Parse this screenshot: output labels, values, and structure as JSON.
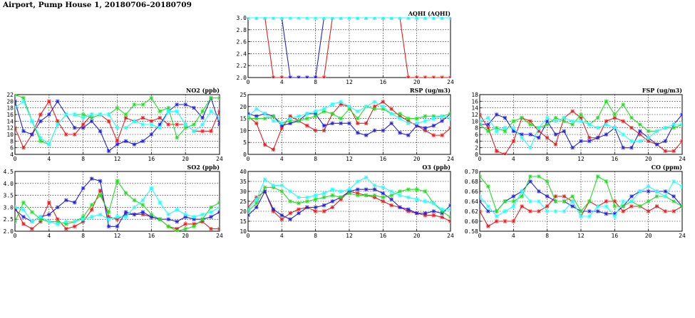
{
  "page": {
    "title": "Airport, Pump House 1, 20180706–20180709"
  },
  "series_colors": [
    "#e81c1c",
    "#2222dd",
    "#22dd22",
    "#22ffff"
  ],
  "chart_data": [
    {
      "type": "line",
      "title": "AQHI (AQHI)",
      "xlim": [
        0,
        24
      ],
      "ylim": [
        2.0,
        3.0
      ],
      "xticks": [
        0,
        4,
        8,
        12,
        16,
        20,
        24
      ],
      "yticks": [
        2.0,
        2.2,
        2.4,
        2.6,
        2.8,
        3.0
      ],
      "ytick_labels": [
        "2.0",
        "2.2",
        "2.4",
        "2.6",
        "2.8",
        "3.0"
      ],
      "grid": true,
      "x": [
        0,
        1,
        2,
        3,
        4,
        5,
        6,
        7,
        8,
        9,
        10,
        11,
        12,
        13,
        14,
        15,
        16,
        17,
        18,
        19,
        20,
        21,
        22,
        23,
        24
      ],
      "series": [
        {
          "color": "#e81c1c",
          "values": [
            3,
            3,
            3,
            2,
            2,
            2,
            2,
            2,
            2,
            2,
            3,
            3,
            3,
            3,
            3,
            3,
            3,
            3,
            3,
            2,
            2,
            2,
            2,
            2,
            2
          ]
        },
        {
          "color": "#2222dd",
          "values": [
            3,
            3,
            3,
            3,
            3,
            2,
            2,
            2,
            2,
            3,
            3,
            3,
            3,
            3,
            3,
            3,
            3,
            3,
            3,
            3,
            3,
            3,
            3,
            3,
            3
          ]
        },
        {
          "color": "#22dd22",
          "values": [
            3,
            3,
            3,
            3,
            3,
            3,
            3,
            3,
            3,
            3,
            3,
            3,
            3,
            3,
            3,
            3,
            3,
            3,
            3,
            3,
            3,
            3,
            3,
            3,
            3
          ]
        },
        {
          "color": "#22ffff",
          "values": [
            3,
            3,
            3,
            3,
            3,
            3,
            3,
            3,
            3,
            3,
            3,
            3,
            3,
            3,
            3,
            3,
            3,
            3,
            3,
            3,
            3,
            3,
            3,
            3,
            3
          ]
        }
      ]
    },
    {
      "type": "line",
      "title": "NO2 (ppb)",
      "xlim": [
        0,
        24
      ],
      "ylim": [
        4,
        22
      ],
      "xticks": [
        0,
        4,
        8,
        12,
        16,
        20,
        24
      ],
      "yticks": [
        4,
        6,
        8,
        10,
        12,
        14,
        16,
        18,
        20,
        22
      ],
      "ytick_labels": [
        "4",
        "6",
        "8",
        "10",
        "12",
        "14",
        "16",
        "18",
        "20",
        "22"
      ],
      "grid": true,
      "x": [
        0,
        1,
        2,
        3,
        4,
        5,
        6,
        7,
        8,
        9,
        10,
        11,
        12,
        13,
        14,
        15,
        16,
        17,
        18,
        19,
        20,
        21,
        22,
        23,
        24
      ],
      "series": [
        {
          "color": "#e81c1c",
          "values": [
            12,
            6,
            10,
            16,
            20,
            14,
            10,
            10,
            13,
            16,
            16,
            14,
            8,
            15,
            14,
            15,
            14,
            15,
            13,
            13,
            13,
            11,
            11,
            11,
            17
          ]
        },
        {
          "color": "#2222dd",
          "values": [
            20,
            11,
            10,
            14,
            16,
            20,
            16,
            12,
            12,
            14,
            11,
            5,
            7,
            8,
            7,
            8,
            10,
            13,
            17,
            19,
            19,
            18,
            15,
            21,
            13
          ]
        },
        {
          "color": "#22dd22",
          "values": [
            22,
            21,
            14,
            8,
            7,
            13,
            16,
            16,
            16,
            15,
            16,
            16,
            18,
            16,
            19,
            19,
            21,
            17,
            18,
            9,
            12,
            13,
            17,
            21,
            21
          ]
        },
        {
          "color": "#22ffff",
          "values": [
            18,
            20,
            14,
            9,
            7,
            13,
            16,
            16,
            15,
            16,
            16,
            16,
            12,
            12,
            14,
            13,
            13,
            12,
            17,
            17,
            13,
            11,
            13,
            17,
            15
          ]
        }
      ]
    },
    {
      "type": "line",
      "title": "RSP (ug/m3)",
      "xlim": [
        0,
        24
      ],
      "ylim": [
        0,
        25
      ],
      "xticks": [
        0,
        4,
        8,
        12,
        16,
        20,
        24
      ],
      "yticks": [
        0,
        5,
        10,
        15,
        20,
        25
      ],
      "ytick_labels": [
        "0",
        "5",
        "10",
        "15",
        "20",
        "25"
      ],
      "grid": true,
      "x": [
        0,
        1,
        2,
        3,
        4,
        5,
        6,
        7,
        8,
        9,
        10,
        11,
        12,
        13,
        14,
        15,
        16,
        17,
        18,
        19,
        20,
        21,
        22,
        23,
        24
      ],
      "series": [
        {
          "color": "#e81c1c",
          "values": [
            16,
            13,
            4,
            2,
            11,
            16,
            14,
            12,
            10,
            10,
            17,
            21,
            20,
            13,
            13,
            20,
            22,
            19,
            16,
            14,
            12,
            10,
            8,
            8,
            11
          ]
        },
        {
          "color": "#2222dd",
          "values": [
            17,
            16,
            17,
            16,
            12,
            13,
            14,
            17,
            17,
            12,
            13,
            13,
            13,
            9,
            8,
            10,
            10,
            13,
            9,
            8,
            12,
            11,
            12,
            14,
            17
          ]
        },
        {
          "color": "#22dd22",
          "values": [
            15,
            15,
            15,
            16,
            13,
            14,
            14,
            15,
            16,
            18,
            17,
            15,
            19,
            15,
            20,
            19,
            19,
            17,
            17,
            15,
            15,
            16,
            16,
            16,
            17
          ]
        },
        {
          "color": "#22ffff",
          "values": [
            16,
            19,
            17,
            14,
            13,
            15,
            16,
            17,
            18,
            19,
            21,
            22,
            20,
            18,
            20,
            22,
            20,
            17,
            15,
            13,
            13,
            14,
            15,
            16,
            15
          ]
        }
      ]
    },
    {
      "type": "line",
      "title": "FSP (ug/m3)",
      "xlim": [
        0,
        24
      ],
      "ylim": [
        0,
        18
      ],
      "xticks": [
        0,
        4,
        8,
        12,
        16,
        20,
        24
      ],
      "yticks": [
        0,
        2,
        4,
        6,
        8,
        10,
        12,
        14,
        16,
        18
      ],
      "ytick_labels": [
        "0",
        "2",
        "4",
        "6",
        "8",
        "10",
        "12",
        "14",
        "16",
        "18"
      ],
      "grid": true,
      "x": [
        0,
        1,
        2,
        3,
        4,
        5,
        6,
        7,
        8,
        9,
        10,
        11,
        12,
        13,
        14,
        15,
        16,
        17,
        18,
        19,
        20,
        21,
        22,
        23,
        24
      ],
      "series": [
        {
          "color": "#e81c1c",
          "values": [
            12,
            8,
            1,
            0,
            4,
            11,
            10,
            7,
            5,
            3,
            11,
            13,
            11,
            5,
            5,
            10,
            11,
            10,
            8,
            6,
            4,
            3,
            1,
            1,
            4
          ]
        },
        {
          "color": "#2222dd",
          "values": [
            9,
            9,
            12,
            11,
            7,
            6,
            6,
            5,
            10,
            6,
            7,
            2,
            4,
            4,
            5,
            6,
            8,
            2,
            2,
            7,
            5,
            3,
            4,
            9,
            12
          ]
        },
        {
          "color": "#22dd22",
          "values": [
            9,
            7,
            8,
            7,
            10,
            11,
            9,
            8,
            9,
            11,
            10,
            9,
            12,
            9,
            11,
            16,
            12,
            15,
            11,
            9,
            7,
            7,
            8,
            8,
            9
          ]
        },
        {
          "color": "#22ffff",
          "values": [
            10,
            11,
            7,
            8,
            8,
            5,
            2,
            8,
            11,
            10,
            11,
            10,
            10,
            9,
            8,
            9,
            8,
            6,
            4,
            4,
            5,
            7,
            8,
            9,
            9
          ]
        }
      ]
    },
    {
      "type": "line",
      "title": "SO2 (ppb)",
      "xlim": [
        0,
        24
      ],
      "ylim": [
        2.0,
        4.5
      ],
      "xticks": [
        0,
        4,
        8,
        12,
        16,
        20,
        24
      ],
      "yticks": [
        2.0,
        2.5,
        3.0,
        3.5,
        4.0,
        4.5
      ],
      "ytick_labels": [
        "2.0",
        "2.5",
        "3.0",
        "3.5",
        "4.0",
        "4.5"
      ],
      "grid": true,
      "x": [
        0,
        1,
        2,
        3,
        4,
        5,
        6,
        7,
        8,
        9,
        10,
        11,
        12,
        13,
        14,
        15,
        16,
        17,
        18,
        19,
        20,
        21,
        22,
        23,
        24
      ],
      "series": [
        {
          "color": "#e81c1c",
          "values": [
            3.0,
            2.3,
            2.1,
            2.4,
            3.2,
            2.5,
            2.1,
            2.2,
            2.4,
            2.9,
            3.7,
            2.6,
            2.5,
            2.7,
            2.7,
            2.7,
            2.6,
            2.5,
            2.2,
            2.1,
            2.3,
            2.3,
            2.4,
            2.1,
            2.1
          ]
        },
        {
          "color": "#2222dd",
          "values": [
            2.9,
            2.6,
            2.4,
            2.6,
            2.7,
            3.0,
            3.3,
            3.2,
            3.8,
            4.2,
            4.1,
            2.2,
            2.2,
            2.8,
            2.7,
            2.8,
            2.6,
            2.5,
            2.5,
            2.4,
            2.6,
            2.5,
            2.5,
            2.6,
            2.8
          ]
        },
        {
          "color": "#22dd22",
          "values": [
            2.4,
            3.2,
            2.8,
            2.5,
            2.4,
            2.4,
            2.3,
            2.4,
            2.6,
            3.1,
            3.5,
            2.8,
            4.1,
            3.6,
            3.3,
            3.1,
            2.7,
            2.5,
            2.2,
            2.0,
            2.1,
            2.2,
            2.5,
            3.0,
            3.2
          ]
        },
        {
          "color": "#22ffff",
          "values": [
            3.0,
            2.9,
            2.4,
            2.6,
            2.4,
            2.3,
            2.4,
            2.4,
            2.5,
            2.6,
            2.7,
            2.5,
            2.6,
            2.6,
            3.0,
            3.3,
            3.8,
            3.2,
            2.7,
            2.9,
            2.7,
            2.6,
            2.7,
            2.8,
            3.0
          ]
        }
      ]
    },
    {
      "type": "line",
      "title": "O3 (ppb)",
      "xlim": [
        0,
        24
      ],
      "ylim": [
        10,
        40
      ],
      "xticks": [
        0,
        4,
        8,
        12,
        16,
        20,
        24
      ],
      "yticks": [
        10,
        15,
        20,
        25,
        30,
        35,
        40
      ],
      "ytick_labels": [
        "10",
        "15",
        "20",
        "25",
        "30",
        "35",
        "40"
      ],
      "grid": true,
      "x": [
        0,
        1,
        2,
        3,
        4,
        5,
        6,
        7,
        8,
        9,
        10,
        11,
        12,
        13,
        14,
        15,
        16,
        17,
        18,
        19,
        20,
        21,
        22,
        23,
        24
      ],
      "series": [
        {
          "color": "#e81c1c",
          "values": [
            22,
            27,
            30,
            20,
            16,
            19,
            21,
            22,
            20,
            20,
            22,
            26,
            30,
            29,
            28,
            27,
            25,
            23,
            22,
            20,
            19,
            18,
            18,
            17,
            15
          ]
        },
        {
          "color": "#2222dd",
          "values": [
            18,
            22,
            30,
            21,
            18,
            16,
            19,
            22,
            22,
            23,
            25,
            27,
            30,
            31,
            31,
            31,
            29,
            26,
            22,
            21,
            19,
            19,
            20,
            19,
            23
          ]
        },
        {
          "color": "#22dd22",
          "values": [
            20,
            24,
            32,
            32,
            30,
            25,
            24,
            25,
            26,
            27,
            28,
            27,
            29,
            28,
            28,
            28,
            27,
            28,
            30,
            31,
            31,
            30,
            24,
            20,
            17
          ]
        },
        {
          "color": "#22ffff",
          "values": [
            21,
            26,
            36,
            33,
            33,
            30,
            27,
            27,
            28,
            29,
            31,
            30,
            31,
            35,
            37,
            33,
            32,
            30,
            28,
            27,
            26,
            25,
            24,
            21,
            21
          ]
        }
      ]
    },
    {
      "type": "line",
      "title": "CO (ppm)",
      "xlim": [
        0,
        24
      ],
      "ylim": [
        0.58,
        0.7
      ],
      "xticks": [
        0,
        4,
        8,
        12,
        16,
        20,
        24
      ],
      "yticks": [
        0.58,
        0.6,
        0.62,
        0.64,
        0.66,
        0.68,
        0.7
      ],
      "ytick_labels": [
        "0.58",
        "0.60",
        "0.62",
        "0.64",
        "0.66",
        "0.68",
        "0.70"
      ],
      "grid": true,
      "x": [
        0,
        1,
        2,
        3,
        4,
        5,
        6,
        7,
        8,
        9,
        10,
        11,
        12,
        13,
        14,
        15,
        16,
        17,
        18,
        19,
        20,
        21,
        22,
        23,
        24
      ],
      "series": [
        {
          "color": "#e81c1c",
          "values": [
            0.62,
            0.59,
            0.6,
            0.6,
            0.6,
            0.63,
            0.62,
            0.62,
            0.63,
            0.65,
            0.65,
            0.64,
            0.61,
            0.64,
            0.63,
            0.64,
            0.64,
            0.62,
            0.63,
            0.63,
            0.62,
            0.63,
            0.62,
            0.62,
            0.63
          ]
        },
        {
          "color": "#2222dd",
          "values": [
            0.64,
            0.62,
            0.62,
            0.64,
            0.65,
            0.66,
            0.68,
            0.66,
            0.65,
            0.64,
            0.64,
            0.63,
            0.62,
            0.62,
            0.62,
            0.615,
            0.615,
            0.63,
            0.65,
            0.66,
            0.66,
            0.66,
            0.66,
            0.65,
            0.63
          ]
        },
        {
          "color": "#22dd22",
          "values": [
            0.69,
            0.67,
            0.62,
            0.64,
            0.64,
            0.65,
            0.69,
            0.69,
            0.68,
            0.64,
            0.64,
            0.65,
            0.62,
            0.64,
            0.69,
            0.68,
            0.63,
            0.63,
            0.64,
            0.63,
            0.64,
            0.65,
            0.65,
            0.64,
            0.63
          ]
        },
        {
          "color": "#22ffff",
          "values": [
            0.65,
            0.63,
            0.61,
            0.62,
            0.63,
            0.66,
            0.64,
            0.64,
            0.62,
            0.62,
            0.62,
            0.64,
            0.61,
            0.61,
            0.63,
            0.63,
            0.61,
            0.64,
            0.64,
            0.66,
            0.67,
            0.66,
            0.65,
            0.68,
            0.67
          ]
        }
      ]
    }
  ]
}
